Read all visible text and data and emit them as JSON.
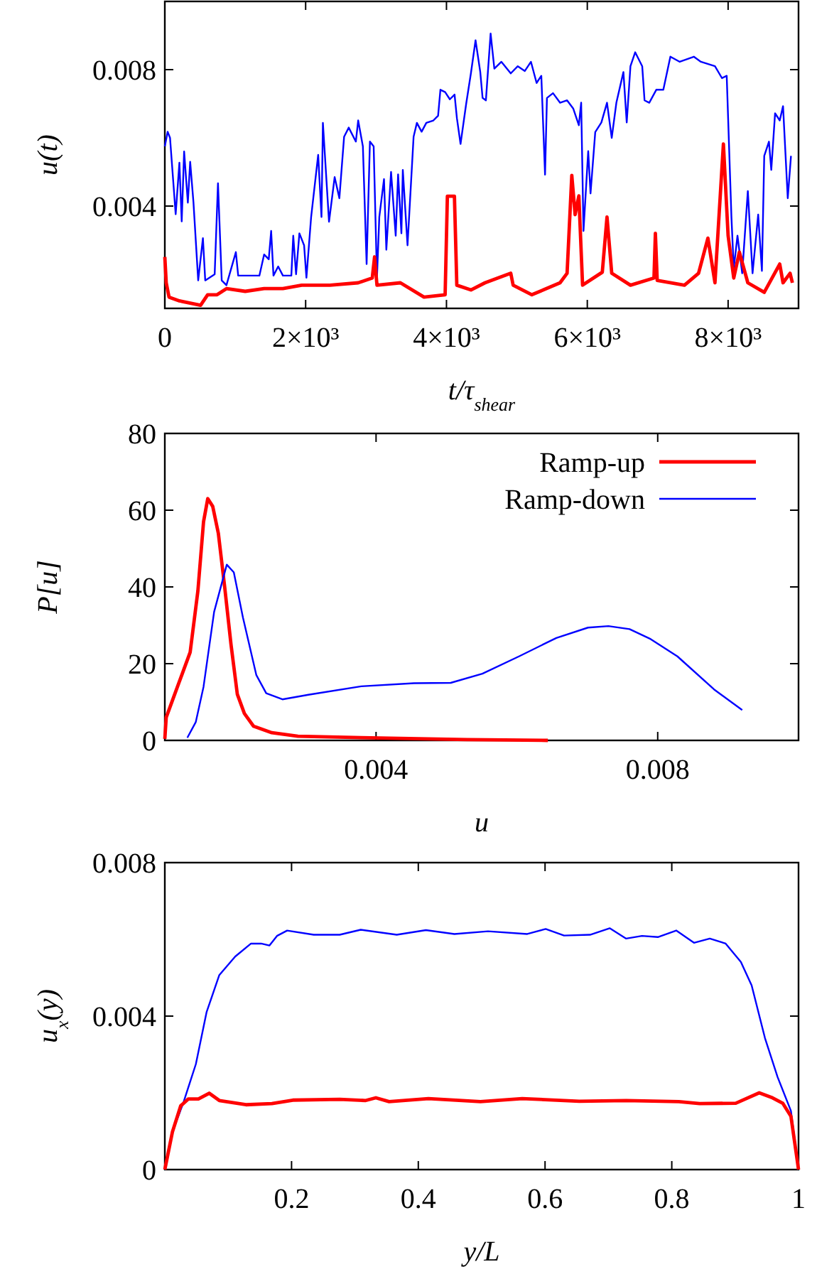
{
  "chart_data": [
    {
      "type": "line",
      "xlabel": "t/τ$_{shear}$",
      "ylabel": "u(t)",
      "xlim": [
        0,
        9000
      ],
      "ylim": [
        0.001,
        0.01
      ],
      "xticks": [
        0,
        {
          "value": 2000,
          "label": "2×10³"
        },
        {
          "value": 4000,
          "label": "4×10³"
        },
        {
          "value": 6000,
          "label": "6×10³"
        },
        {
          "value": 8000,
          "label": "8×10³"
        }
      ],
      "yticks": [
        0.004,
        0.008
      ],
      "legend": false,
      "series": [
        {
          "color": "#0000ff",
          "x": [
            0,
            40,
            74,
            154,
            207,
            240,
            274,
            327,
            360,
            407,
            474,
            541,
            574,
            708,
            755,
            808,
            875,
            1009,
            1042,
            1343,
            1410,
            1476,
            1510,
            1543,
            1610,
            1677,
            1797,
            1824,
            1864,
            1911,
            1978,
            2011,
            2078,
            2178,
            2225,
            2245,
            2332,
            2412,
            2479,
            2546,
            2612,
            2713,
            2746,
            2813,
            2866,
            2913,
            2966,
            3013,
            3046,
            3113,
            3146,
            3213,
            3279,
            3313,
            3360,
            3380,
            3447,
            3533,
            3580,
            3647,
            3714,
            3814,
            3881,
            3914,
            3981,
            4048,
            4115,
            4148,
            4200,
            4280,
            4347,
            4413,
            4480,
            4513,
            4560,
            4627,
            4680,
            4780,
            4913,
            5013,
            5113,
            5200,
            5280,
            5347,
            5400,
            5427,
            5513,
            5613,
            5713,
            5800,
            5880,
            5913,
            5946,
            6013,
            6046,
            6113,
            6200,
            6280,
            6347,
            6413,
            6513,
            6560,
            6613,
            6680,
            6780,
            6813,
            6880,
            6980,
            7080,
            7180,
            7313,
            7513,
            7613,
            7813,
            7913,
            7980,
            8047,
            8080,
            8133,
            8200,
            8280,
            8347,
            8427,
            8480,
            8513,
            8580,
            8613,
            8667,
            8733,
            8780,
            8847,
            8893
          ],
          "values": [
            0.00575,
            0.00618,
            0.006,
            0.00376,
            0.00527,
            0.00355,
            0.0056,
            0.0041,
            0.0053,
            0.0041,
            0.00182,
            0.00306,
            0.00182,
            0.002,
            0.00467,
            0.00182,
            0.00168,
            0.00265,
            0.00196,
            0.00196,
            0.00258,
            0.00244,
            0.00327,
            0.00196,
            0.00223,
            0.00196,
            0.00196,
            0.00313,
            0.002,
            0.0032,
            0.00285,
            0.0019,
            0.00368,
            0.0055,
            0.00368,
            0.00644,
            0.00354,
            0.00485,
            0.00423,
            0.00603,
            0.0063,
            0.00589,
            0.00651,
            0.00575,
            0.0023,
            0.00589,
            0.00575,
            0.0019,
            0.00368,
            0.00479,
            0.00272,
            0.005,
            0.00313,
            0.00493,
            0.0032,
            0.00506,
            0.00285,
            0.00603,
            0.00644,
            0.00618,
            0.00644,
            0.00651,
            0.00665,
            0.00741,
            0.00734,
            0.00713,
            0.00727,
            0.00658,
            0.00582,
            0.007,
            0.00789,
            0.00886,
            0.00793,
            0.00717,
            0.0071,
            0.00906,
            0.00803,
            0.00823,
            0.00789,
            0.0081,
            0.00796,
            0.00823,
            0.00761,
            0.00782,
            0.00492,
            0.00717,
            0.00731,
            0.00703,
            0.0071,
            0.00686,
            0.00637,
            0.00703,
            0.00327,
            0.00561,
            0.00437,
            0.00617,
            0.00645,
            0.00703,
            0.006,
            0.00703,
            0.00793,
            0.00645,
            0.0081,
            0.00851,
            0.0081,
            0.0071,
            0.00703,
            0.00741,
            0.00741,
            0.00838,
            0.00823,
            0.00838,
            0.00823,
            0.0081,
            0.00775,
            0.00782,
            0.00368,
            0.00217,
            0.00313,
            0.00203,
            0.00444,
            0.00203,
            0.00375,
            0.0021,
            0.00547,
            0.00589,
            0.00506,
            0.00672,
            0.00651,
            0.00693,
            0.00423,
            0.00547
          ]
        },
        {
          "color": "#ff0000",
          "x": [
            0,
            20,
            60,
            207,
            508,
            608,
            742,
            875,
            1142,
            1410,
            1677,
            1944,
            2345,
            2746,
            2946,
            2979,
            3013,
            3346,
            3681,
            3981,
            4013,
            4113,
            4147,
            4347,
            4547,
            4913,
            4947,
            5213,
            5613,
            5713,
            5780,
            5827,
            5880,
            5933,
            6213,
            6280,
            6347,
            6613,
            6947,
            6967,
            6993,
            7380,
            7580,
            7713,
            7813,
            7933,
            8000,
            8080,
            8160,
            8280,
            8513,
            8733,
            8780,
            8880,
            8913
          ],
          "values": [
            0.00251,
            0.00175,
            0.00133,
            0.00122,
            0.00109,
            0.0014,
            0.0014,
            0.00158,
            0.0015,
            0.00158,
            0.00158,
            0.00168,
            0.00168,
            0.00175,
            0.00189,
            0.00251,
            0.00168,
            0.00175,
            0.00133,
            0.0014,
            0.00429,
            0.00429,
            0.00168,
            0.00154,
            0.00175,
            0.00203,
            0.00168,
            0.0014,
            0.00175,
            0.00203,
            0.0049,
            0.00375,
            0.0043,
            0.00168,
            0.00206,
            0.00368,
            0.00203,
            0.00168,
            0.00189,
            0.0032,
            0.00182,
            0.00168,
            0.00203,
            0.00306,
            0.00175,
            0.00582,
            0.00313,
            0.00189,
            0.00265,
            0.00175,
            0.00147,
            0.0023,
            0.00175,
            0.00203,
            0.00175
          ]
        }
      ]
    },
    {
      "type": "line",
      "xlabel": "u",
      "ylabel": "P[u]",
      "xlim": [
        0.001,
        0.01
      ],
      "ylim": [
        0,
        80
      ],
      "xticks": [
        0.004,
        0.008
      ],
      "yticks": [
        0,
        20,
        40,
        60,
        80
      ],
      "legend": "top right",
      "series": [
        {
          "name": "Ramp-up",
          "color": "#ff0000",
          "x": [
            0.001,
            0.00102,
            0.00114,
            0.00126,
            0.00136,
            0.00147,
            0.00155,
            0.00161,
            0.00168,
            0.00176,
            0.00185,
            0.00194,
            0.00203,
            0.00213,
            0.00226,
            0.00252,
            0.00289,
            0.00379,
            0.00529,
            0.00644
          ],
          "values": [
            0.4,
            6,
            12,
            18,
            23,
            39,
            57,
            63,
            61,
            54,
            40,
            25,
            12,
            7,
            3.7,
            2,
            1.1,
            0.7,
            0.2,
            0
          ]
        },
        {
          "name": "Ramp-down",
          "color": "#0000ff",
          "x": [
            0.00132,
            0.00144,
            0.00155,
            0.0017,
            0.00188,
            0.00198,
            0.00211,
            0.0023,
            0.00244,
            0.00267,
            0.00304,
            0.00379,
            0.00454,
            0.00506,
            0.00551,
            0.00603,
            0.00656,
            0.00701,
            0.0073,
            0.0076,
            0.0079,
            0.00828,
            0.0088,
            0.0092
          ],
          "values": [
            0.7,
            4.8,
            14,
            33.5,
            45.8,
            43.8,
            32,
            17,
            12.3,
            10.7,
            11.9,
            14.1,
            14.9,
            15,
            17.4,
            21.9,
            26.7,
            29.4,
            29.8,
            29,
            26.4,
            21.9,
            13.3,
            7.9
          ]
        }
      ]
    },
    {
      "type": "line",
      "xlabel": "y/L",
      "ylabel": "u$_{x}$(y)",
      "xlim": [
        0,
        1
      ],
      "ylim": [
        0,
        0.008
      ],
      "xticks": [
        0.2,
        0.4,
        0.6,
        0.8,
        1
      ],
      "yticks": [
        0,
        0.004,
        0.008
      ],
      "legend": false,
      "series": [
        {
          "color": "#0000ff",
          "x": [
            0,
            0.012,
            0.029,
            0.049,
            0.066,
            0.086,
            0.111,
            0.136,
            0.152,
            0.165,
            0.177,
            0.193,
            0.235,
            0.276,
            0.309,
            0.366,
            0.412,
            0.457,
            0.51,
            0.572,
            0.601,
            0.63,
            0.671,
            0.702,
            0.728,
            0.753,
            0.778,
            0.807,
            0.835,
            0.86,
            0.885,
            0.909,
            0.926,
            0.947,
            0.967,
            0.988,
            1
          ],
          "values": [
            0,
            0.00098,
            0.00173,
            0.00275,
            0.00411,
            0.00507,
            0.00555,
            0.00589,
            0.00589,
            0.00584,
            0.00609,
            0.00623,
            0.00612,
            0.00612,
            0.00625,
            0.00612,
            0.00624,
            0.00614,
            0.00621,
            0.00614,
            0.00627,
            0.0061,
            0.00612,
            0.00629,
            0.00602,
            0.00609,
            0.00606,
            0.00623,
            0.00591,
            0.00602,
            0.00589,
            0.00541,
            0.0048,
            0.00343,
            0.00241,
            0.00153,
            0
          ]
        },
        {
          "color": "#ff0000",
          "x": [
            0,
            0.012,
            0.025,
            0.037,
            0.053,
            0.07,
            0.086,
            0.128,
            0.169,
            0.202,
            0.276,
            0.317,
            0.333,
            0.354,
            0.416,
            0.498,
            0.564,
            0.654,
            0.728,
            0.811,
            0.844,
            0.901,
            0.938,
            0.959,
            0.975,
            0.988,
            1
          ],
          "values": [
            0,
            0.00098,
            0.00166,
            0.00184,
            0.00184,
            0.00199,
            0.0018,
            0.00169,
            0.00172,
            0.00181,
            0.00183,
            0.0018,
            0.00187,
            0.00177,
            0.00185,
            0.00177,
            0.00185,
            0.00178,
            0.0018,
            0.00177,
            0.00172,
            0.00173,
            0.002,
            0.00187,
            0.00173,
            0.00139,
            0
          ]
        }
      ]
    }
  ]
}
